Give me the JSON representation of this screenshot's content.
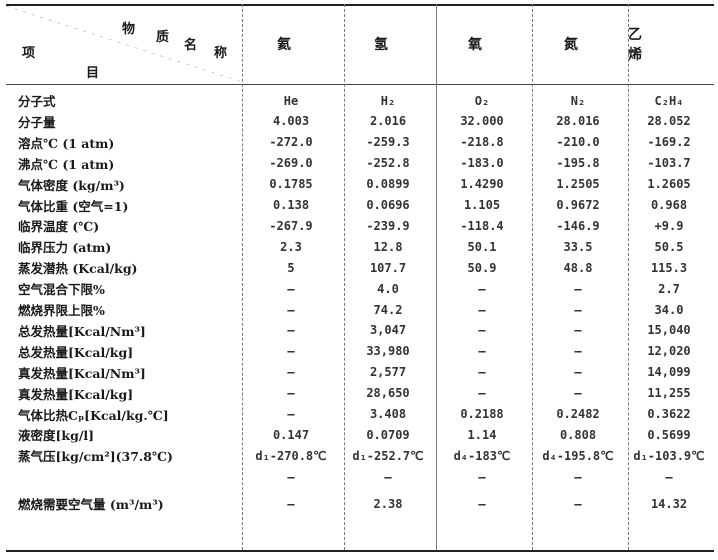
{
  "header": {
    "corner_top": [
      "物",
      "质",
      "名",
      "称"
    ],
    "corner_left": "项",
    "corner_bottom": "目",
    "columns": [
      "氦",
      "氢",
      "氧",
      "氮",
      "乙 烯"
    ]
  },
  "rows": [
    {
      "label": "分子式",
      "values": [
        "He",
        "H₂",
        "O₂",
        "N₂",
        "C₂H₄"
      ]
    },
    {
      "label": "分子量",
      "values": [
        "4.003",
        "2.016",
        "32.000",
        "28.016",
        "28.052"
      ]
    },
    {
      "label": "溶点℃ (1 atm)",
      "values": [
        "-272.0",
        "-259.3",
        "-218.8",
        "-210.0",
        "-169.2"
      ]
    },
    {
      "label": "沸点℃ (1 atm)",
      "values": [
        "-269.0",
        "-252.8",
        "-183.0",
        "-195.8",
        "-103.7"
      ]
    },
    {
      "label": "气体密度 (kg/m³)",
      "values": [
        "0.1785",
        "0.0899",
        "1.4290",
        "1.2505",
        "1.2605"
      ]
    },
    {
      "label": "气体比重 (空气=1)",
      "values": [
        "0.138",
        "0.0696",
        "1.105",
        "0.9672",
        "0.968"
      ]
    },
    {
      "label": "临界温度 (℃)",
      "values": [
        "-267.9",
        "-239.9",
        "-118.4",
        "-146.9",
        "+9.9"
      ]
    },
    {
      "label": "临界压力 (atm)",
      "values": [
        "2.3",
        "12.8",
        "50.1",
        "33.5",
        "50.5"
      ]
    },
    {
      "label": "蒸发潜热 (Kcal/kg)",
      "values": [
        "5",
        "107.7",
        "50.9",
        "48.8",
        "115.3"
      ]
    },
    {
      "label": "空气混合下限%",
      "values": [
        "—",
        "4.0",
        "—",
        "—",
        "2.7"
      ]
    },
    {
      "label": "燃烧界限上限%",
      "values": [
        "—",
        "74.2",
        "—",
        "—",
        "34.0"
      ]
    },
    {
      "label": "总发热量[Kcal/Nm³]",
      "values": [
        "—",
        "3,047",
        "—",
        "—",
        "15,040"
      ]
    },
    {
      "label": "总发热量[Kcal/kg]",
      "values": [
        "—",
        "33,980",
        "—",
        "—",
        "12,020"
      ]
    },
    {
      "label": "真发热量[Kcal/Nm³]",
      "values": [
        "—",
        "2,577",
        "—",
        "—",
        "14,099"
      ]
    },
    {
      "label": "真发热量[Kcal/kg]",
      "values": [
        "—",
        "28,650",
        "—",
        "—",
        "11,255"
      ]
    },
    {
      "label": "气体比热Cₚ[Kcal/kg.℃]",
      "values": [
        "—",
        "3.408",
        "0.2188",
        "0.2482",
        "0.3622"
      ]
    },
    {
      "label": "液密度[kg/l]",
      "values": [
        "0.147",
        "0.0709",
        "1.14",
        "0.808",
        "0.5699"
      ]
    },
    {
      "label": "蒸气压[kg/cm²](37.8℃)",
      "values": [
        "d₁-270.8℃",
        "d₁-252.7℃",
        "d₄-183℃",
        "d₄-195.8℃",
        "d₁-103.9℃"
      ]
    },
    {
      "label": "",
      "values": [
        "—",
        "—",
        "—",
        "—",
        "—"
      ]
    },
    {
      "label": "燃烧需要空气量 (m³/m³)",
      "values": [
        "—",
        "2.38",
        "—",
        "—",
        "14.32"
      ]
    }
  ]
}
